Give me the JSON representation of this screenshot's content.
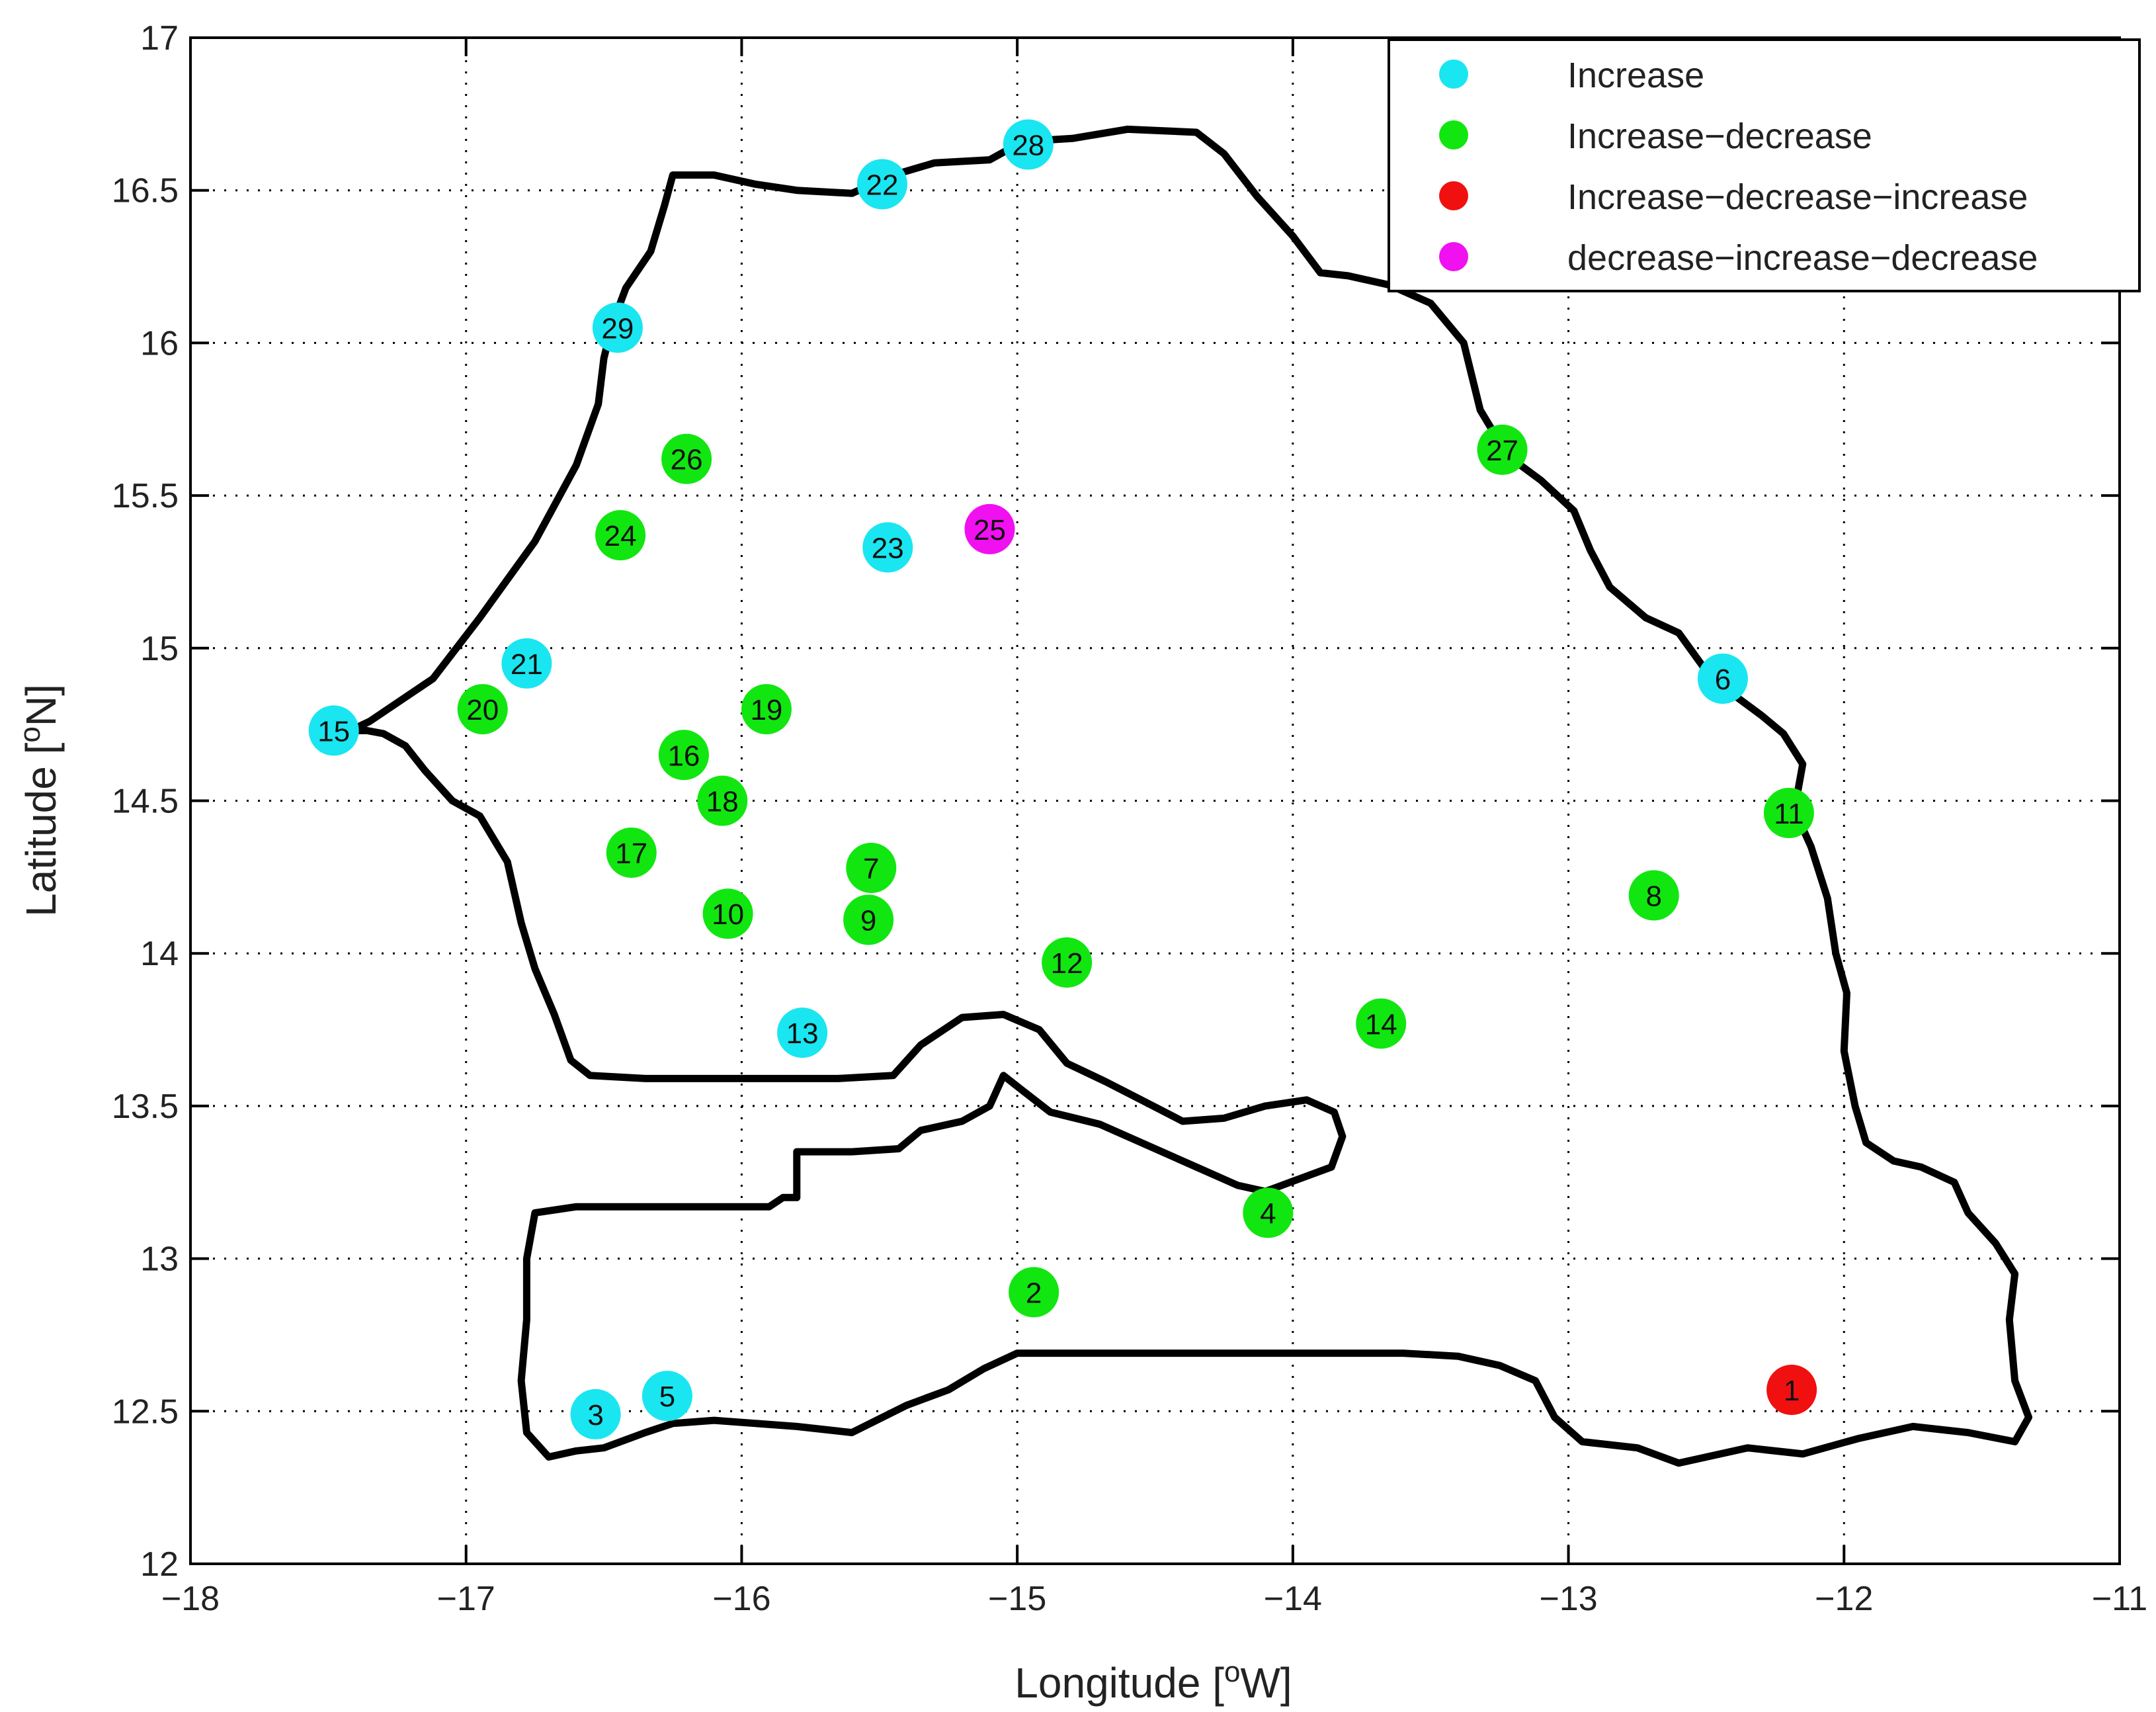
{
  "chart_data": {
    "type": "scatter",
    "xlabel": "Longitude [°W]",
    "ylabel": "Latitude [°N]",
    "xlim": [
      -18,
      -11
    ],
    "ylim": [
      12,
      17
    ],
    "xticks": [
      -18,
      -17,
      -16,
      -15,
      -14,
      -13,
      -12,
      -11
    ],
    "xtick_labels": [
      "−18",
      "−17",
      "−16",
      "−15",
      "−14",
      "−13",
      "−12",
      "−11"
    ],
    "yticks": [
      12,
      12.5,
      13,
      13.5,
      14,
      14.5,
      15,
      15.5,
      16,
      16.5,
      17
    ],
    "ytick_labels": [
      "12",
      "12.5",
      "13",
      "13.5",
      "14",
      "14.5",
      "15",
      "15.5",
      "16",
      "16.5",
      "17"
    ],
    "grid": true,
    "legend_position": "top-right",
    "series": [
      {
        "name": "Increase",
        "color": "#19e6f0",
        "points": [
          {
            "label": "3",
            "x": -16.53,
            "y": 12.49
          },
          {
            "label": "5",
            "x": -16.27,
            "y": 12.55
          },
          {
            "label": "6",
            "x": -12.44,
            "y": 14.9
          },
          {
            "label": "13",
            "x": -15.78,
            "y": 13.74
          },
          {
            "label": "15",
            "x": -17.48,
            "y": 14.73
          },
          {
            "label": "21",
            "x": -16.78,
            "y": 14.95
          },
          {
            "label": "22",
            "x": -15.49,
            "y": 16.52
          },
          {
            "label": "23",
            "x": -15.47,
            "y": 15.33
          },
          {
            "label": "28",
            "x": -14.96,
            "y": 16.65
          },
          {
            "label": "29",
            "x": -16.45,
            "y": 16.05
          }
        ]
      },
      {
        "name": "Increase−decrease",
        "color": "#11e611",
        "points": [
          {
            "label": "2",
            "x": -14.94,
            "y": 12.89
          },
          {
            "label": "4",
            "x": -14.09,
            "y": 13.15
          },
          {
            "label": "7",
            "x": -15.53,
            "y": 14.28
          },
          {
            "label": "8",
            "x": -12.69,
            "y": 14.19
          },
          {
            "label": "9",
            "x": -15.54,
            "y": 14.11
          },
          {
            "label": "10",
            "x": -16.05,
            "y": 14.13
          },
          {
            "label": "11",
            "x": -12.2,
            "y": 14.46
          },
          {
            "label": "12",
            "x": -14.82,
            "y": 13.97
          },
          {
            "label": "14",
            "x": -13.68,
            "y": 13.77
          },
          {
            "label": "16",
            "x": -16.21,
            "y": 14.65
          },
          {
            "label": "17",
            "x": -16.4,
            "y": 14.33
          },
          {
            "label": "18",
            "x": -16.07,
            "y": 14.5
          },
          {
            "label": "19",
            "x": -15.91,
            "y": 14.8
          },
          {
            "label": "20",
            "x": -16.94,
            "y": 14.8
          },
          {
            "label": "24",
            "x": -16.44,
            "y": 15.37
          },
          {
            "label": "26",
            "x": -16.2,
            "y": 15.62
          },
          {
            "label": "27",
            "x": -13.24,
            "y": 15.65
          }
        ]
      },
      {
        "name": "Increase−decrease−increase",
        "color": "#f01010",
        "points": [
          {
            "label": "1",
            "x": -12.19,
            "y": 12.57
          }
        ]
      },
      {
        "name": "decrease−increase−decrease",
        "color": "#f010f0",
        "points": [
          {
            "label": "25",
            "x": -15.1,
            "y": 15.39
          }
        ]
      }
    ],
    "outline": {
      "main": [
        [
          -17.42,
          14.73
        ],
        [
          -17.35,
          14.76
        ],
        [
          -17.12,
          14.9
        ],
        [
          -16.95,
          15.1
        ],
        [
          -16.75,
          15.35
        ],
        [
          -16.6,
          15.6
        ],
        [
          -16.52,
          15.8
        ],
        [
          -16.5,
          15.95
        ],
        [
          -16.47,
          16.06
        ],
        [
          -16.42,
          16.18
        ],
        [
          -16.33,
          16.3
        ],
        [
          -16.28,
          16.45
        ],
        [
          -16.25,
          16.55
        ],
        [
          -16.1,
          16.55
        ],
        [
          -15.95,
          16.52
        ],
        [
          -15.8,
          16.5
        ],
        [
          -15.6,
          16.49
        ],
        [
          -15.45,
          16.55
        ],
        [
          -15.3,
          16.59
        ],
        [
          -15.1,
          16.6
        ],
        [
          -14.98,
          16.66
        ],
        [
          -14.8,
          16.67
        ],
        [
          -14.6,
          16.7
        ],
        [
          -14.35,
          16.69
        ],
        [
          -14.25,
          16.62
        ],
        [
          -14.13,
          16.48
        ],
        [
          -14.0,
          16.35
        ],
        [
          -13.9,
          16.23
        ],
        [
          -13.8,
          16.22
        ],
        [
          -13.65,
          16.19
        ],
        [
          -13.5,
          16.13
        ],
        [
          -13.38,
          16.0
        ],
        [
          -13.32,
          15.78
        ],
        [
          -13.22,
          15.63
        ],
        [
          -13.1,
          15.55
        ],
        [
          -12.98,
          15.45
        ],
        [
          -12.92,
          15.32
        ],
        [
          -12.85,
          15.2
        ],
        [
          -12.72,
          15.1
        ],
        [
          -12.6,
          15.05
        ],
        [
          -12.48,
          14.9
        ],
        [
          -12.3,
          14.78
        ],
        [
          -12.22,
          14.72
        ],
        [
          -12.15,
          14.62
        ],
        [
          -12.18,
          14.47
        ],
        [
          -12.12,
          14.35
        ],
        [
          -12.06,
          14.18
        ],
        [
          -12.03,
          14.0
        ],
        [
          -11.99,
          13.87
        ],
        [
          -12.0,
          13.68
        ],
        [
          -11.96,
          13.5
        ],
        [
          -11.92,
          13.38
        ],
        [
          -11.82,
          13.32
        ],
        [
          -11.72,
          13.3
        ],
        [
          -11.6,
          13.25
        ],
        [
          -11.55,
          13.15
        ],
        [
          -11.45,
          13.05
        ],
        [
          -11.38,
          12.95
        ],
        [
          -11.4,
          12.8
        ],
        [
          -11.38,
          12.6
        ],
        [
          -11.33,
          12.48
        ],
        [
          -11.38,
          12.4
        ],
        [
          -11.55,
          12.43
        ],
        [
          -11.75,
          12.45
        ],
        [
          -11.95,
          12.41
        ],
        [
          -12.15,
          12.36
        ],
        [
          -12.35,
          12.38
        ],
        [
          -12.6,
          12.33
        ],
        [
          -12.75,
          12.38
        ],
        [
          -12.95,
          12.4
        ],
        [
          -13.05,
          12.48
        ],
        [
          -13.12,
          12.6
        ],
        [
          -13.25,
          12.65
        ],
        [
          -13.4,
          12.68
        ],
        [
          -13.6,
          12.69
        ],
        [
          -13.85,
          12.69
        ],
        [
          -14.2,
          12.69
        ],
        [
          -14.6,
          12.69
        ],
        [
          -14.85,
          12.69
        ],
        [
          -15.0,
          12.69
        ],
        [
          -15.12,
          12.64
        ],
        [
          -15.25,
          12.57
        ],
        [
          -15.4,
          12.52
        ],
        [
          -15.6,
          12.43
        ],
        [
          -15.8,
          12.45
        ],
        [
          -16.1,
          12.47
        ],
        [
          -16.25,
          12.46
        ],
        [
          -16.35,
          12.43
        ],
        [
          -16.5,
          12.38
        ],
        [
          -16.6,
          12.37
        ],
        [
          -16.7,
          12.35
        ],
        [
          -16.78,
          12.43
        ],
        [
          -16.8,
          12.6
        ],
        [
          -16.78,
          12.8
        ],
        [
          -16.78,
          13.0
        ],
        [
          -16.75,
          13.15
        ],
        [
          -16.6,
          13.17
        ],
        [
          -16.2,
          13.17
        ],
        [
          -15.9,
          13.17
        ],
        [
          -15.85,
          13.2
        ],
        [
          -15.8,
          13.2
        ],
        [
          -15.8,
          13.35
        ],
        [
          -15.6,
          13.35
        ],
        [
          -15.43,
          13.36
        ],
        [
          -15.35,
          13.42
        ],
        [
          -15.2,
          13.45
        ],
        [
          -15.1,
          13.5
        ],
        [
          -15.05,
          13.6
        ],
        [
          -14.98,
          13.55
        ],
        [
          -14.88,
          13.48
        ],
        [
          -14.7,
          13.44
        ],
        [
          -14.5,
          13.36
        ],
        [
          -14.35,
          13.3
        ],
        [
          -14.2,
          13.24
        ],
        [
          -14.1,
          13.22
        ],
        [
          -13.98,
          13.26
        ],
        [
          -13.86,
          13.3
        ],
        [
          -13.82,
          13.4
        ],
        [
          -13.85,
          13.48
        ],
        [
          -13.95,
          13.52
        ],
        [
          -14.1,
          13.5
        ],
        [
          -14.25,
          13.46
        ],
        [
          -14.4,
          13.45
        ],
        [
          -14.55,
          13.52
        ],
        [
          -14.68,
          13.58
        ],
        [
          -14.82,
          13.64
        ],
        [
          -14.92,
          13.75
        ],
        [
          -15.05,
          13.8
        ],
        [
          -15.2,
          13.79
        ],
        [
          -15.35,
          13.7
        ],
        [
          -15.45,
          13.6
        ],
        [
          -15.65,
          13.59
        ],
        [
          -16.0,
          13.59
        ],
        [
          -16.35,
          13.59
        ],
        [
          -16.55,
          13.6
        ],
        [
          -16.62,
          13.65
        ],
        [
          -16.68,
          13.8
        ],
        [
          -16.75,
          13.95
        ],
        [
          -16.8,
          14.1
        ],
        [
          -16.85,
          14.3
        ],
        [
          -16.95,
          14.45
        ],
        [
          -17.05,
          14.5
        ],
        [
          -17.15,
          14.6
        ],
        [
          -17.22,
          14.68
        ],
        [
          -17.3,
          14.72
        ],
        [
          -17.36,
          14.73
        ],
        [
          -17.42,
          14.73
        ]
      ]
    }
  },
  "legend": {
    "entries": [
      {
        "label": "Increase",
        "color": "#19e6f0"
      },
      {
        "label": "Increase−decrease",
        "color": "#11e611"
      },
      {
        "label": "Increase−decrease−increase",
        "color": "#f01010"
      },
      {
        "label": "decrease−increase−decrease",
        "color": "#f010f0"
      }
    ]
  }
}
